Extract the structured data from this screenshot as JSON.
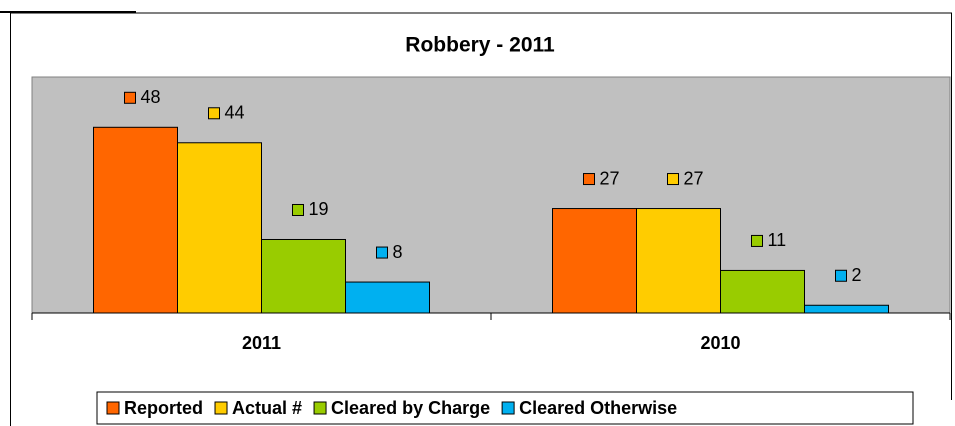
{
  "chart_data": {
    "type": "bar",
    "title": "Robbery - 2011",
    "categories": [
      "2011",
      "2010"
    ],
    "series": [
      {
        "name": "Reported",
        "color": "#ff6600",
        "values": [
          48,
          27
        ]
      },
      {
        "name": "Actual #",
        "color": "#ffcc00",
        "values": [
          44,
          27
        ]
      },
      {
        "name": "Cleared by Charge",
        "color": "#99cc00",
        "values": [
          19,
          11
        ]
      },
      {
        "name": "Cleared Otherwise",
        "color": "#00b0f0",
        "values": [
          8,
          2
        ]
      }
    ],
    "ylim": [
      0,
      61
    ],
    "grid": false,
    "legend": "bottom"
  }
}
